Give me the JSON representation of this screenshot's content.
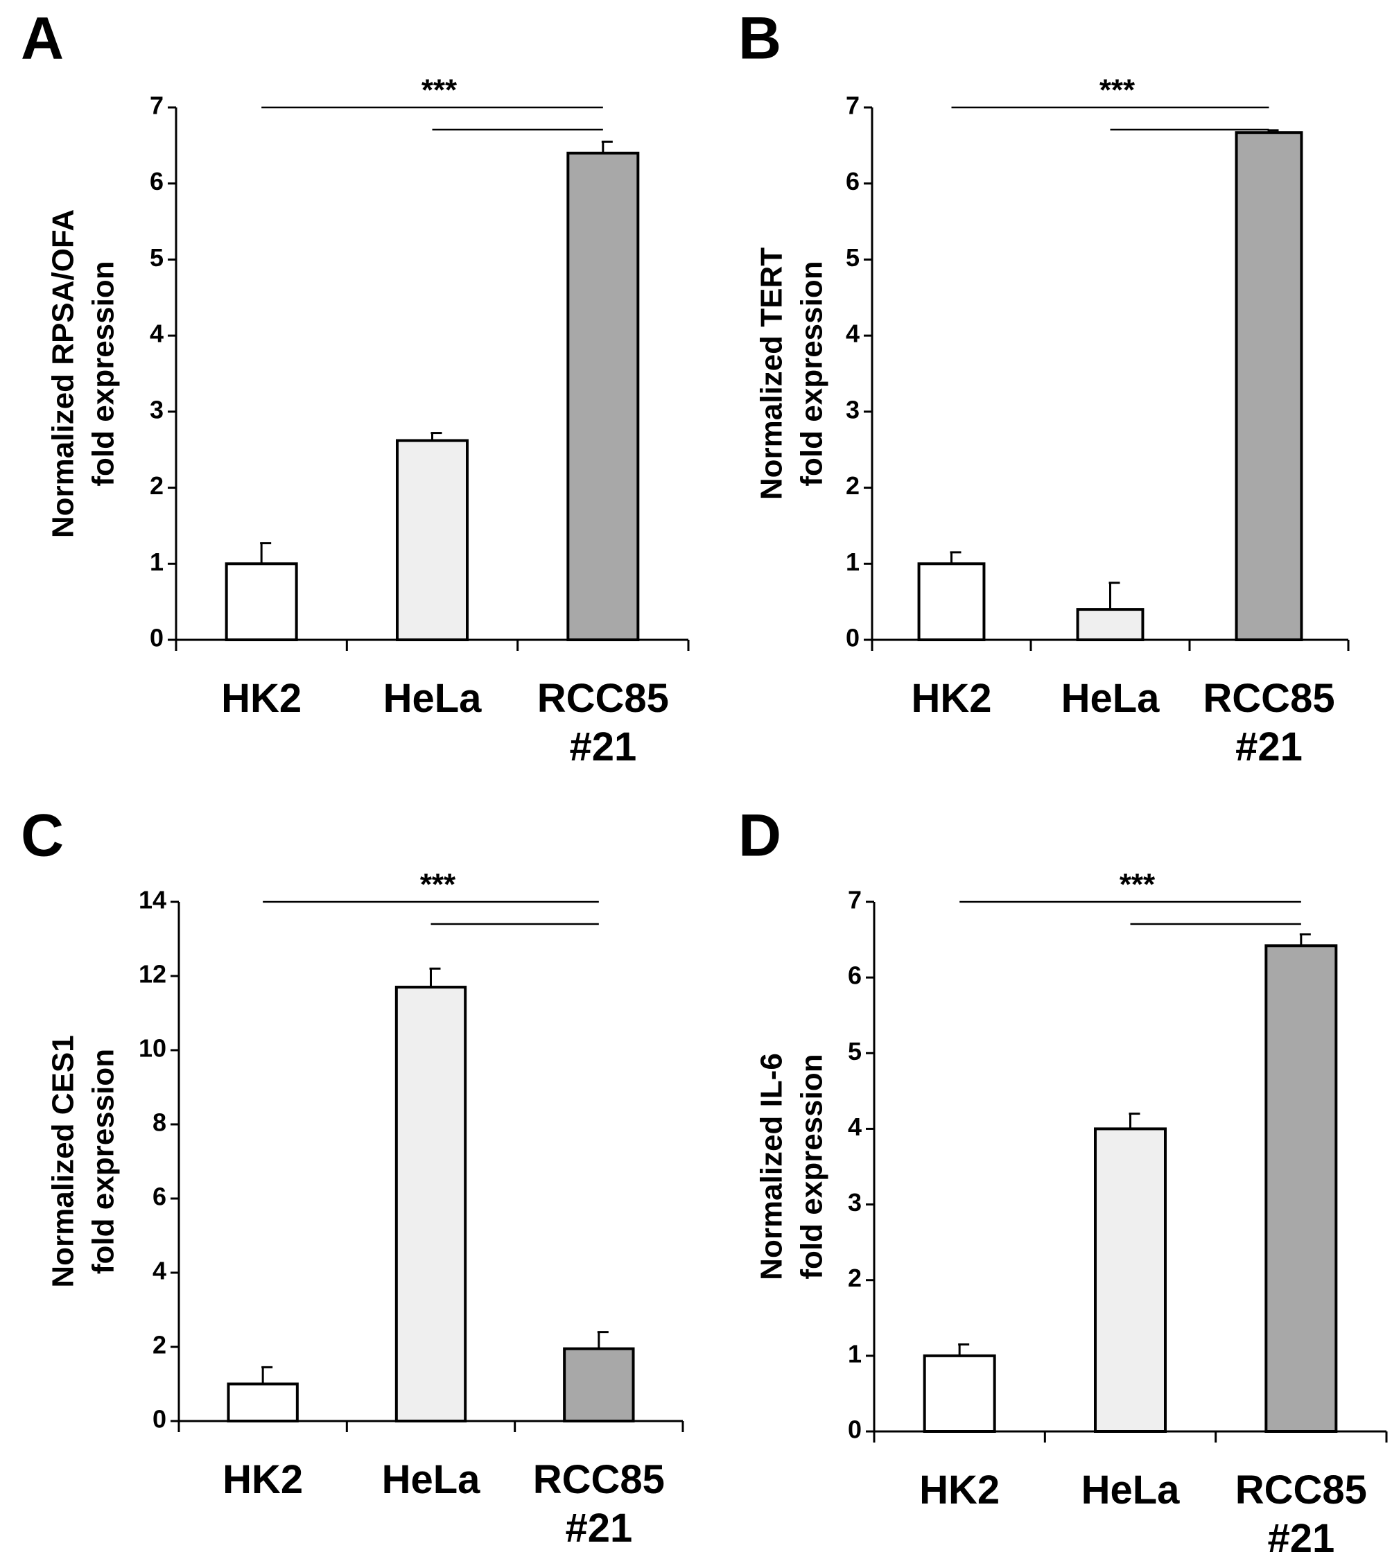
{
  "chart_data": [
    {
      "type": "bar",
      "panel": "A",
      "ylabel": [
        "Normalized RPSA/OFA",
        "fold expression"
      ],
      "annotation": "***",
      "categories": [
        "HK2",
        "HeLa",
        "RCC85 #21"
      ],
      "series": [
        {
          "values": [
            1.0,
            2.62,
            6.4
          ],
          "errors": [
            0.27,
            0.1,
            0.15
          ],
          "colors": [
            "#ffffff",
            "#efefef",
            "#a8a8a8"
          ]
        }
      ],
      "ylim": [
        0,
        7
      ],
      "yticks": [
        0,
        1,
        2,
        3,
        4,
        5,
        6,
        7
      ]
    },
    {
      "type": "bar",
      "panel": "B",
      "ylabel": [
        "Normalized TERT",
        "fold expression"
      ],
      "annotation": "***",
      "categories": [
        "HK2",
        "HeLa",
        "RCC85 #21"
      ],
      "series": [
        {
          "values": [
            1.0,
            0.4,
            6.67
          ],
          "errors": [
            0.15,
            0.35,
            0.03
          ],
          "colors": [
            "#ffffff",
            "#efefef",
            "#a8a8a8"
          ]
        }
      ],
      "ylim": [
        0,
        7
      ],
      "yticks": [
        0,
        1,
        2,
        3,
        4,
        5,
        6,
        7
      ]
    },
    {
      "type": "bar",
      "panel": "C",
      "ylabel": [
        "Normalized CES1",
        "fold expression"
      ],
      "annotation": "***",
      "categories": [
        "HK2",
        "HeLa",
        "RCC85 #21"
      ],
      "series": [
        {
          "values": [
            1.0,
            11.7,
            1.95
          ],
          "errors": [
            0.45,
            0.5,
            0.45
          ],
          "colors": [
            "#ffffff",
            "#efefef",
            "#a8a8a8"
          ]
        }
      ],
      "ylim": [
        0,
        14
      ],
      "yticks": [
        0,
        2,
        4,
        6,
        8,
        10,
        12,
        14
      ]
    },
    {
      "type": "bar",
      "panel": "D",
      "ylabel": [
        "Normalized IL-6",
        "fold expression"
      ],
      "annotation": "***",
      "categories": [
        "HK2",
        "HeLa",
        "RCC85 #21"
      ],
      "series": [
        {
          "values": [
            1.0,
            4.0,
            6.42
          ],
          "errors": [
            0.15,
            0.2,
            0.15
          ],
          "colors": [
            "#ffffff",
            "#efefef",
            "#a8a8a8"
          ]
        }
      ],
      "ylim": [
        0,
        7
      ],
      "yticks": [
        0,
        1,
        2,
        3,
        4,
        5,
        6,
        7
      ]
    }
  ]
}
